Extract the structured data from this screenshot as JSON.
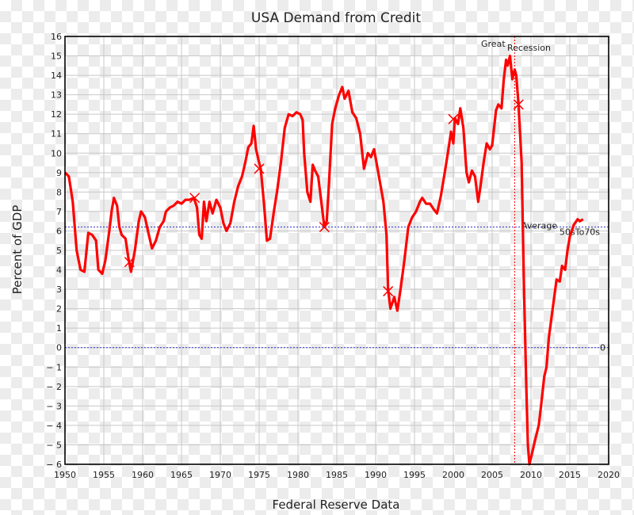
{
  "chart_data": {
    "type": "line",
    "title": "USA Demand from Credit",
    "xlabel": "Federal Reserve Data",
    "ylabel": "Percent of GDP",
    "xlim": [
      1950,
      2020
    ],
    "ylim": [
      -6,
      16
    ],
    "grid": true,
    "xticks": [
      "1950",
      "1955",
      "1960",
      "1965",
      "1970",
      "1975",
      "1980",
      "1985",
      "1990",
      "1995",
      "2000",
      "2005",
      "2010",
      "2015",
      "2020"
    ],
    "yticks": [
      "16",
      "15",
      "14",
      "13",
      "12",
      "11",
      "10",
      "9",
      "8",
      "7",
      "6",
      "5",
      "4",
      "3",
      "2",
      "1",
      "0",
      "− 1",
      "− 2",
      "− 3",
      "− 4",
      "− 5",
      "− 6"
    ],
    "line_color": "#ff0000",
    "series": [
      {
        "name": "Demand from Credit",
        "x": [
          1950,
          1950.5,
          1951,
          1951.5,
          1952,
          1952.5,
          1953,
          1953.5,
          1954,
          1954.3,
          1954.8,
          1955.2,
          1955.7,
          1956,
          1956.3,
          1956.7,
          1957,
          1957.3,
          1957.8,
          1958.2,
          1958.5,
          1959,
          1959.5,
          1959.8,
          1960.3,
          1960.8,
          1961.2,
          1961.7,
          1962.2,
          1962.7,
          1963,
          1963.5,
          1964,
          1964.5,
          1965,
          1965.5,
          1966,
          1966.6,
          1967,
          1967.3,
          1967.6,
          1967.9,
          1968.2,
          1968.6,
          1969,
          1969.5,
          1970,
          1970.4,
          1970.8,
          1971.3,
          1971.8,
          1972.3,
          1972.8,
          1973.2,
          1973.6,
          1974,
          1974.3,
          1974.6,
          1975,
          1975.2,
          1975.6,
          1976,
          1976.4,
          1976.9,
          1977.3,
          1977.8,
          1978.3,
          1978.8,
          1979.3,
          1979.8,
          1980.3,
          1980.6,
          1980.8,
          1981.2,
          1981.6,
          1981.9,
          1982.2,
          1982.6,
          1983,
          1983.4,
          1983.7,
          1984,
          1984.4,
          1984.8,
          1985.3,
          1985.7,
          1986,
          1986.5,
          1987,
          1987.5,
          1988,
          1988.5,
          1989,
          1989.4,
          1989.8,
          1990.2,
          1990.6,
          1991,
          1991.4,
          1991.6,
          1991.9,
          1992.4,
          1992.8,
          1993.2,
          1993.7,
          1994.2,
          1994.7,
          1995.2,
          1995.7,
          1996,
          1996.5,
          1997,
          1997.5,
          1997.9,
          1998.4,
          1998.9,
          1999.3,
          1999.7,
          2000,
          2000.2,
          2000.6,
          2000.9,
          2001.3,
          2001.7,
          2002,
          2002.4,
          2002.8,
          2003.2,
          2003.5,
          2003.9,
          2004.3,
          2004.7,
          2005,
          2005.5,
          2005.8,
          2006.2,
          2006.5,
          2006.8,
          2007,
          2007.3,
          2007.6,
          2007.9,
          2008.1,
          2008.4,
          2008.8,
          2009.1,
          2009.4,
          2009.6,
          2009.8,
          2010.1,
          2010.5,
          2011,
          2011.3,
          2011.7,
          2012,
          2012.3,
          2012.8,
          2013.3,
          2013.7,
          2014,
          2014.4,
          2014.7,
          2015,
          2015.5,
          2016,
          2016.3,
          2016.7
        ],
        "y": [
          9,
          8.8,
          7.5,
          5,
          4,
          3.9,
          5.9,
          5.8,
          5.5,
          4,
          3.8,
          4.5,
          6,
          7,
          7.7,
          7.3,
          6.2,
          5.8,
          5.6,
          4.5,
          3.9,
          5,
          6.5,
          7,
          6.7,
          5.8,
          5.1,
          5.5,
          6.2,
          6.5,
          7,
          7.2,
          7.3,
          7.5,
          7.4,
          7.6,
          7.6,
          7.7,
          7.2,
          5.8,
          5.6,
          7.5,
          6.5,
          7.5,
          6.9,
          7.6,
          7.2,
          6.4,
          6,
          6.4,
          7.5,
          8.3,
          8.8,
          9.5,
          10.3,
          10.5,
          11.4,
          10.2,
          9.5,
          9.2,
          7.5,
          5.5,
          5.6,
          7,
          8,
          9.5,
          11.3,
          12,
          11.9,
          12.1,
          12,
          11.7,
          10,
          8,
          7.5,
          9.4,
          9.1,
          8.8,
          7.5,
          6.2,
          6.5,
          8.5,
          11.5,
          12.3,
          13,
          13.4,
          12.8,
          13.2,
          12.1,
          11.8,
          11,
          9.2,
          10,
          9.8,
          10.2,
          9.3,
          8.4,
          7.5,
          5.8,
          3,
          2,
          2.6,
          1.9,
          3,
          4.5,
          6.2,
          6.7,
          7,
          7.5,
          7.7,
          7.4,
          7.4,
          7.1,
          6.9,
          7.8,
          9,
          10,
          11.1,
          10.5,
          11.8,
          11.5,
          12.3,
          11.3,
          9,
          8.5,
          9.1,
          8.8,
          7.5,
          8.3,
          9.5,
          10.5,
          10.2,
          10.4,
          12.2,
          12.5,
          12.3,
          13.8,
          14.8,
          14.5,
          15,
          13.8,
          14.3,
          14,
          12.5,
          9.5,
          3,
          -2,
          -5,
          -6,
          -5.5,
          -4.8,
          -4,
          -3,
          -1.5,
          -1,
          0.5,
          2,
          3.5,
          3.4,
          4.2,
          4,
          5,
          5.7,
          6.3,
          6.6,
          6.5,
          6.6
        ]
      }
    ],
    "markers": {
      "x": [
        1958.3,
        1966.7,
        1975,
        1983.4,
        1991.6,
        2000,
        2008.4
      ],
      "y": [
        4.4,
        7.7,
        9.2,
        6.2,
        2.9,
        11.75,
        12.5
      ]
    },
    "reference_lines": [
      {
        "axis": "y",
        "value": 6.2,
        "label": "Average",
        "label_sub": "50sTo70s",
        "color": "#3333cc"
      },
      {
        "axis": "y",
        "value": 0,
        "label": "0",
        "color": "#3333cc"
      },
      {
        "axis": "x",
        "value": 2007.9,
        "label": "Great",
        "label_sub": "Recession",
        "color": "#ff0000"
      }
    ]
  }
}
